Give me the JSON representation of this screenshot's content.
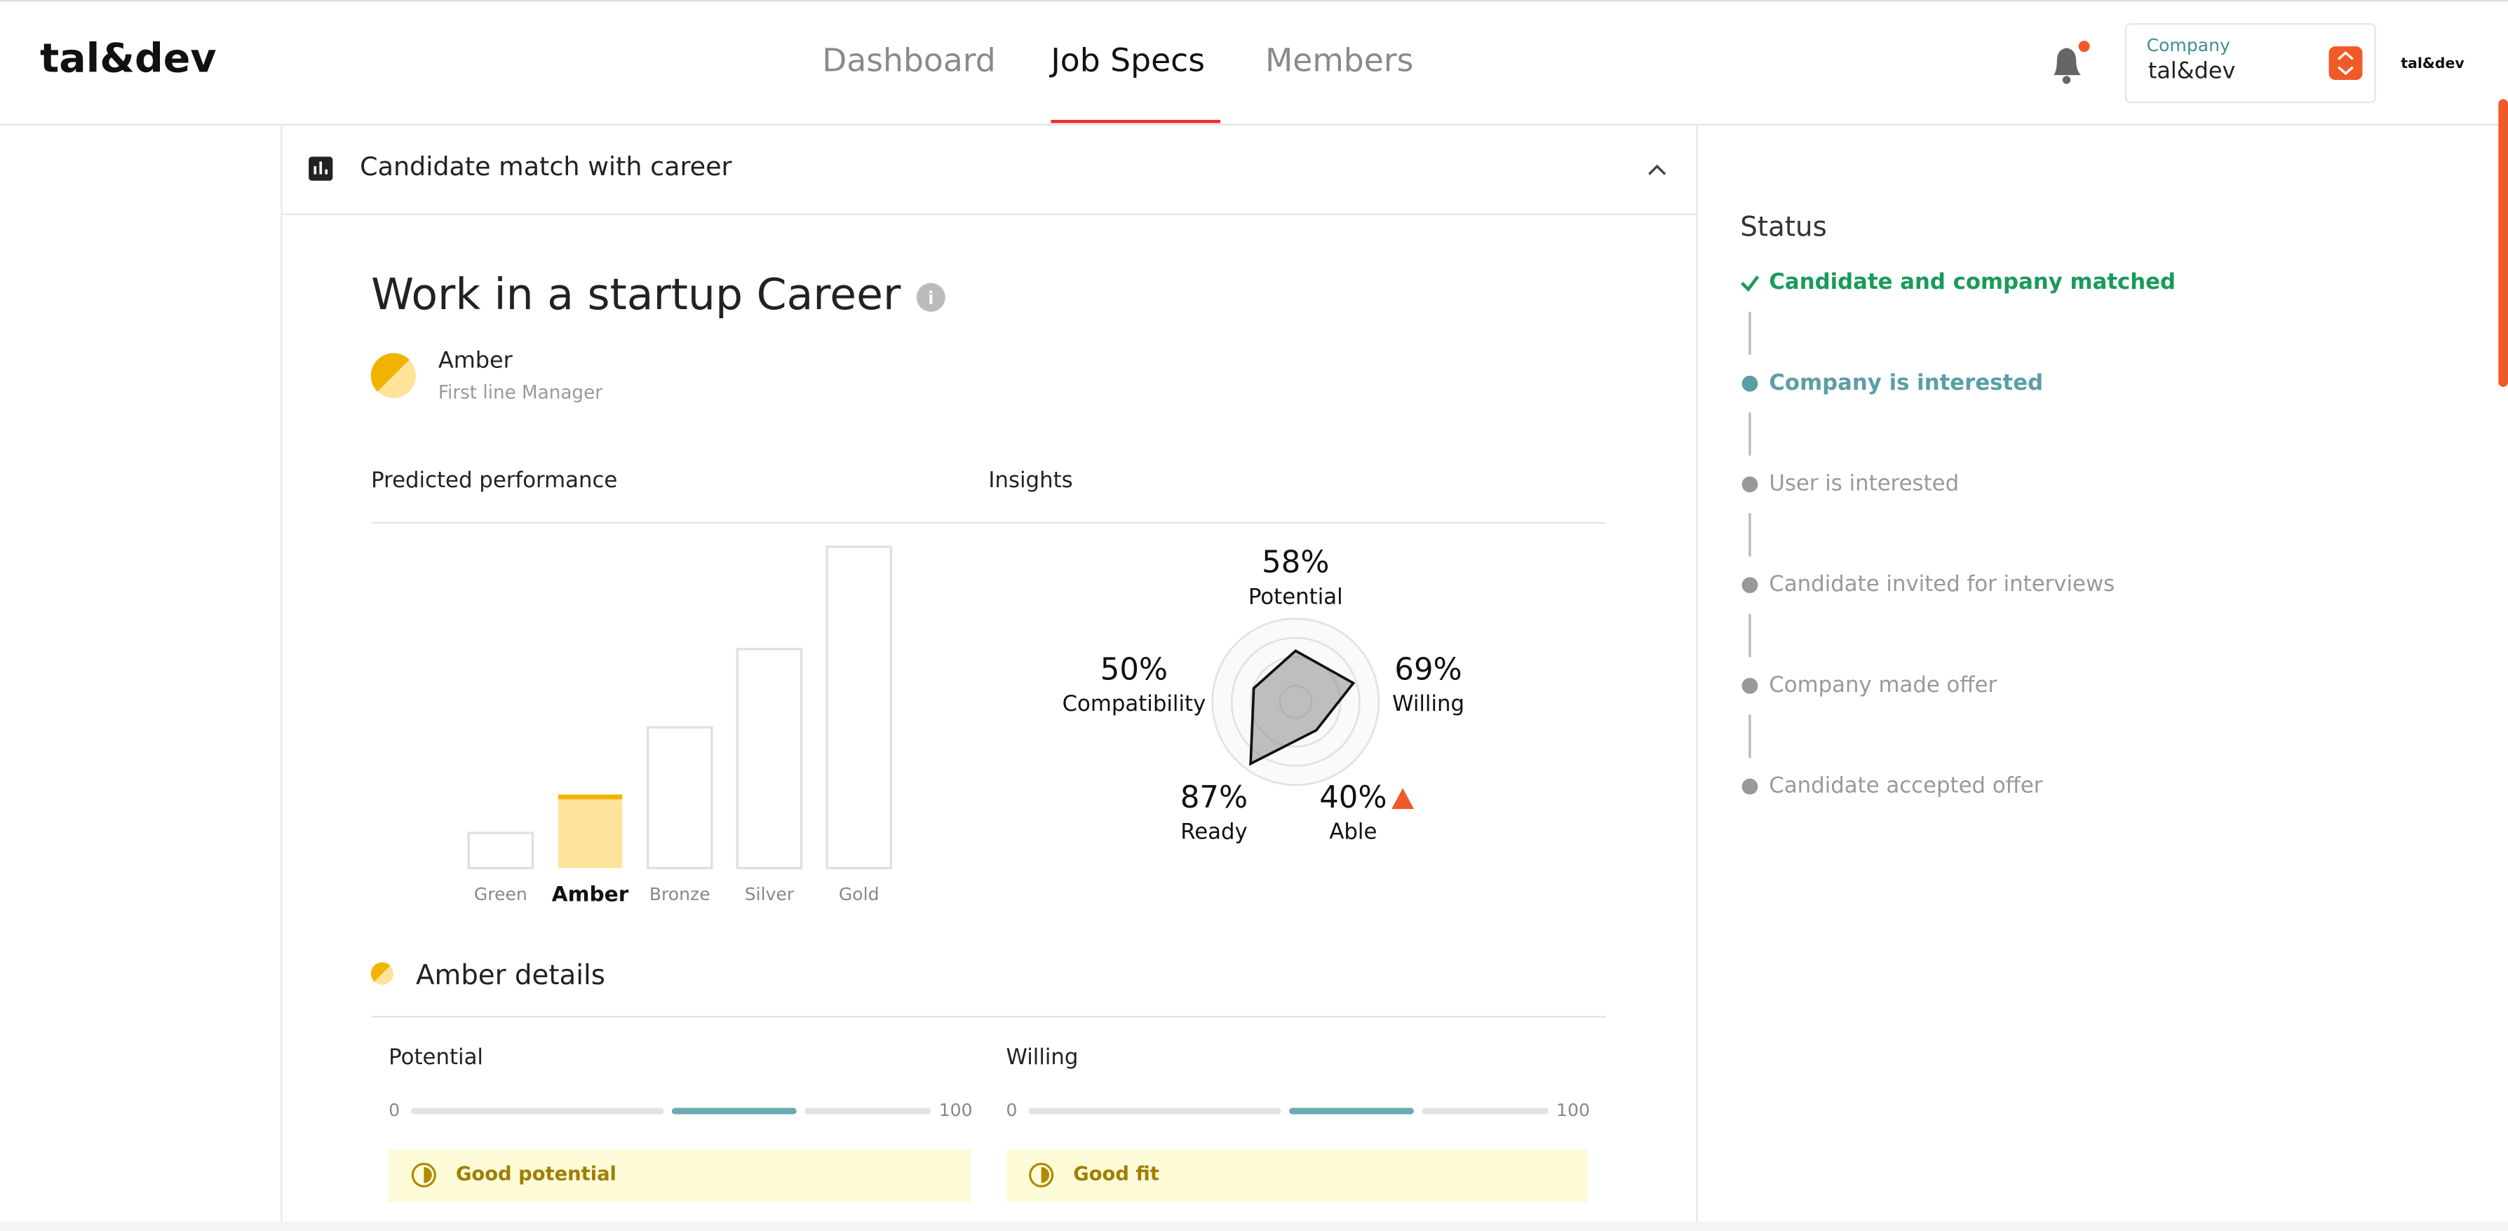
{
  "header": {
    "logo": "tal&dev",
    "nav": [
      "Dashboard",
      "Job Specs",
      "Members"
    ],
    "company_label": "Company",
    "company_name": "tal&dev",
    "user": "tal&dev"
  },
  "panel": {
    "title": "Candidate match with career",
    "career": "Work in a startup Career",
    "level": "Amber",
    "role": "First line Manager",
    "performance_title": "Predicted performance",
    "tiers": [
      "Green",
      "Amber",
      "Bronze",
      "Silver",
      "Gold"
    ],
    "insights_title": "Insights",
    "insights": {
      "type": "radar",
      "axes": [
        "Potential",
        "Willing",
        "Able",
        "Ready",
        "Compatibility"
      ],
      "values": [
        58,
        69,
        40,
        87,
        50
      ],
      "value_labels": [
        "58%",
        "69%",
        "40%",
        "87%",
        "50%"
      ]
    },
    "details_title": "Amber details",
    "details": [
      {
        "name": "Potential",
        "min": "0",
        "max": "100",
        "note": "Good potential"
      },
      {
        "name": "Willing",
        "min": "0",
        "max": "100",
        "note": "Good fit"
      }
    ]
  },
  "status": {
    "title": "Status",
    "steps": [
      "Candidate and company matched",
      "Company is interested",
      "User is interested",
      "Candidate invited for interviews",
      "Company made offer",
      "Candidate accepted offer"
    ]
  }
}
